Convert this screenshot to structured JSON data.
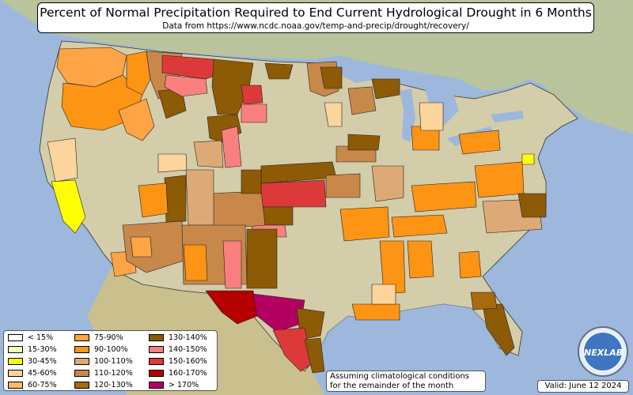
{
  "title": "Percent of Normal Precipitation Required to End Current Hydrological Drought in 6 Months",
  "subtitle": "Data from https://www.ncdc.noaa.gov/temp-and-precip/drought/recovery/",
  "legend": {
    "items": [
      {
        "label": "< 15%",
        "color": "#ffffff"
      },
      {
        "label": "15-30%",
        "color": "#ffffb3"
      },
      {
        "label": "30-45%",
        "color": "#ffff00"
      },
      {
        "label": "45-60%",
        "color": "#fcd49c"
      },
      {
        "label": "60-75%",
        "color": "#fdb96a"
      },
      {
        "label": "75-90%",
        "color": "#fea444"
      },
      {
        "label": "90-100%",
        "color": "#fd9414"
      },
      {
        "label": "100-110%",
        "color": "#ddaa77"
      },
      {
        "label": "110-120%",
        "color": "#c8884a"
      },
      {
        "label": "120-130%",
        "color": "#a66a11"
      },
      {
        "label": "130-140%",
        "color": "#8d5a06"
      },
      {
        "label": "140-150%",
        "color": "#fa8080"
      },
      {
        "label": "150-160%",
        "color": "#dc3a3a"
      },
      {
        "label": "160-170%",
        "color": "#b40000"
      },
      {
        "label": "> 170%",
        "color": "#b40060"
      }
    ]
  },
  "note": {
    "line1": "Assuming climatological conditions",
    "line2": "for the remainder of the month"
  },
  "valid": "Valid: June 12 2024",
  "logo": {
    "text": "NEXLAB"
  }
}
